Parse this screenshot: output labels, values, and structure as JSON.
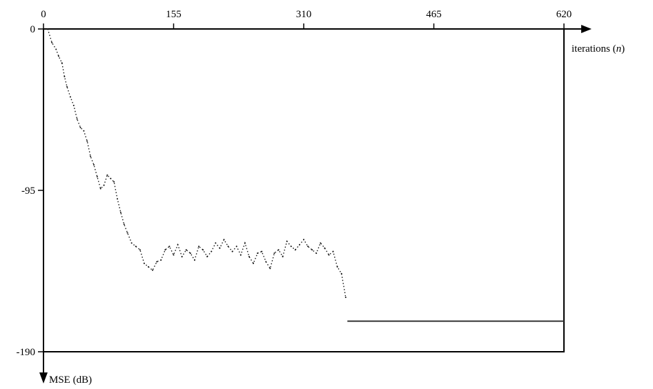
{
  "chart_data": {
    "type": "line",
    "xlabel": "iterations (n)",
    "xlabel_main": "iterations (",
    "xlabel_var": "n",
    "xlabel_close": ")",
    "ylabel": "MSE (dB)",
    "x_ticks": [
      0,
      155,
      310,
      465,
      620
    ],
    "x_tick_labels": [
      "0",
      "155",
      "310",
      "465",
      "620"
    ],
    "y_ticks": [
      0,
      -95,
      -190
    ],
    "y_tick_labels": [
      "0",
      "-95",
      "-190"
    ],
    "xlim": [
      0,
      620
    ],
    "ylim": [
      -190,
      0
    ],
    "x_axis_position": "top",
    "y_axis_direction": "down",
    "grid": false,
    "series": [
      {
        "style": "noisy-dotted",
        "x": [
          5,
          10,
          15,
          18,
          22,
          25,
          28,
          32,
          36,
          40,
          44,
          48,
          52,
          56,
          60,
          64,
          68,
          72,
          76,
          80,
          84,
          88,
          92,
          96,
          100,
          105,
          110,
          115,
          120,
          125,
          130,
          135,
          140,
          145,
          150,
          155,
          160,
          165,
          170,
          175,
          180,
          185,
          190,
          195,
          200,
          205,
          210,
          215,
          220,
          225,
          230,
          235,
          240,
          245,
          250,
          255,
          260,
          265,
          270,
          275,
          280,
          285,
          290,
          295,
          300,
          305,
          310,
          315,
          320,
          325,
          330,
          335,
          340,
          345,
          350,
          355,
          360
        ],
        "y": [
          0,
          -8,
          -12,
          -16,
          -20,
          -28,
          -34,
          -40,
          -45,
          -53,
          -58,
          -60,
          -66,
          -75,
          -80,
          -87,
          -94,
          -92,
          -86,
          -88,
          -90,
          -100,
          -108,
          -115,
          -120,
          -126,
          -128,
          -130,
          -138,
          -140,
          -142,
          -137,
          -136,
          -130,
          -128,
          -133,
          -127,
          -134,
          -130,
          -132,
          -136,
          -128,
          -130,
          -134,
          -131,
          -126,
          -129,
          -124,
          -128,
          -131,
          -128,
          -133,
          -126,
          -134,
          -138,
          -132,
          -131,
          -137,
          -141,
          -132,
          -130,
          -134,
          -125,
          -128,
          -130,
          -127,
          -124,
          -128,
          -130,
          -132,
          -126,
          -129,
          -133,
          -131,
          -140,
          -144,
          -158
        ]
      },
      {
        "style": "solid",
        "x": [
          362,
          620
        ],
        "y": [
          -172,
          -172
        ]
      }
    ]
  }
}
